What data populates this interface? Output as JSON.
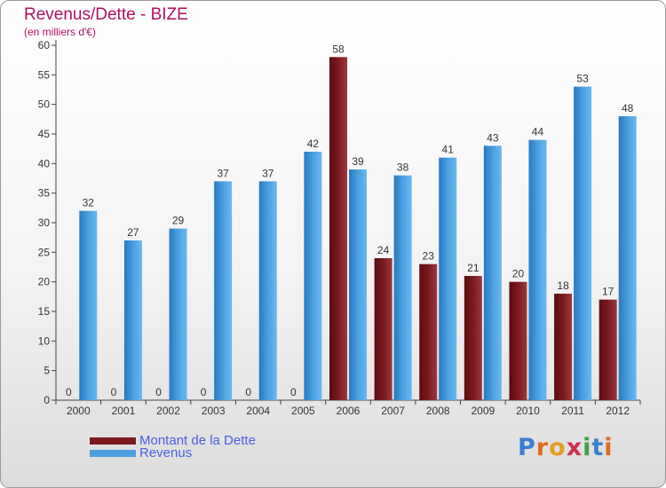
{
  "title": "Revenus/Dette - BIZE",
  "subtitle": "(en milliers d'€)",
  "logo": "Proxiti",
  "colors": {
    "dette": "#7a1a1e",
    "revenus": "#4aa0e0",
    "title": "#b01060",
    "legend_text": "#4a5fe0"
  },
  "chart_data": {
    "type": "bar",
    "title": "Revenus/Dette - BIZE",
    "subtitle": "(en milliers d'€)",
    "categories": [
      "2000",
      "2001",
      "2002",
      "2003",
      "2004",
      "2005",
      "2006",
      "2007",
      "2008",
      "2009",
      "2010",
      "2011",
      "2012"
    ],
    "series": [
      {
        "name": "Montant de la Dette",
        "values": [
          0,
          0,
          0,
          0,
          0,
          0,
          58,
          24,
          23,
          21,
          20,
          18,
          17
        ]
      },
      {
        "name": "Revenus",
        "values": [
          32,
          27,
          29,
          37,
          37,
          42,
          39,
          38,
          41,
          43,
          44,
          53,
          48
        ]
      }
    ],
    "ylim": [
      0,
      60
    ],
    "yticks": [
      0,
      5,
      10,
      15,
      20,
      25,
      30,
      35,
      40,
      45,
      50,
      55,
      60
    ],
    "grid": false,
    "legend": "bottom-left"
  }
}
